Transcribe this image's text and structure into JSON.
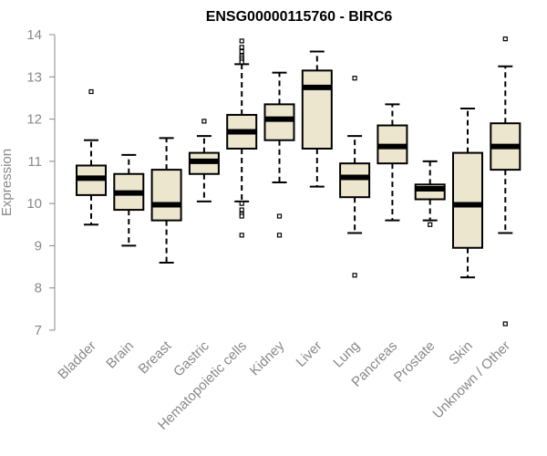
{
  "chart_data": {
    "type": "boxplot",
    "title": "ENSG00000115760 - BIRC6",
    "ylabel": "Expression",
    "xlabel": "",
    "ylim": [
      7,
      14
    ],
    "yticks": [
      7,
      8,
      9,
      10,
      11,
      12,
      13,
      14
    ],
    "grid": false,
    "colors": {
      "box_fill": "#ede6cf",
      "stroke": "#000000",
      "axis": "#888888",
      "tick_text": "#888888"
    },
    "categories": [
      "Bladder",
      "Brain",
      "Breast",
      "Gastric",
      "Hematopoietic cells",
      "Kidney",
      "Liver",
      "Lung",
      "Pancreas",
      "Prostate",
      "Skin",
      "Unknown / Other"
    ],
    "boxes": [
      {
        "name": "Bladder",
        "whisker_low": 9.5,
        "q1": 10.2,
        "median": 10.6,
        "q3": 10.9,
        "whisker_high": 11.5,
        "outliers": [
          12.65
        ]
      },
      {
        "name": "Brain",
        "whisker_low": 9.0,
        "q1": 9.85,
        "median": 10.25,
        "q3": 10.7,
        "whisker_high": 11.15,
        "outliers": []
      },
      {
        "name": "Breast",
        "whisker_low": 8.6,
        "q1": 9.6,
        "median": 9.97,
        "q3": 10.8,
        "whisker_high": 11.55,
        "outliers": []
      },
      {
        "name": "Gastric",
        "whisker_low": 10.05,
        "q1": 10.7,
        "median": 11.0,
        "q3": 11.2,
        "whisker_high": 11.6,
        "outliers": [
          11.95
        ]
      },
      {
        "name": "Hematopoietic cells",
        "whisker_low": 10.05,
        "q1": 11.3,
        "median": 11.7,
        "q3": 12.1,
        "whisker_high": 13.3,
        "outliers": [
          13.85,
          13.7,
          13.6,
          13.5,
          13.45,
          13.4,
          13.35,
          10.0,
          9.85,
          9.75,
          9.7,
          9.25
        ]
      },
      {
        "name": "Kidney",
        "whisker_low": 10.5,
        "q1": 11.5,
        "median": 12.0,
        "q3": 12.35,
        "whisker_high": 13.1,
        "outliers": [
          9.7,
          9.25
        ]
      },
      {
        "name": "Liver",
        "whisker_low": 10.4,
        "q1": 11.3,
        "median": 12.75,
        "q3": 13.15,
        "whisker_high": 13.6,
        "outliers": []
      },
      {
        "name": "Lung",
        "whisker_low": 9.3,
        "q1": 10.15,
        "median": 10.62,
        "q3": 10.95,
        "whisker_high": 11.6,
        "outliers": [
          12.97,
          8.3
        ]
      },
      {
        "name": "Pancreas",
        "whisker_low": 9.6,
        "q1": 10.95,
        "median": 11.35,
        "q3": 11.85,
        "whisker_high": 12.35,
        "outliers": []
      },
      {
        "name": "Prostate",
        "whisker_low": 9.6,
        "q1": 10.1,
        "median": 10.35,
        "q3": 10.45,
        "whisker_high": 11.0,
        "outliers": [
          9.5
        ]
      },
      {
        "name": "Skin",
        "whisker_low": 8.25,
        "q1": 8.95,
        "median": 9.97,
        "q3": 11.2,
        "whisker_high": 12.25,
        "outliers": []
      },
      {
        "name": "Unknown / Other",
        "whisker_low": 9.3,
        "q1": 10.8,
        "median": 11.35,
        "q3": 11.9,
        "whisker_high": 13.25,
        "outliers": [
          13.9,
          7.15
        ]
      }
    ]
  }
}
